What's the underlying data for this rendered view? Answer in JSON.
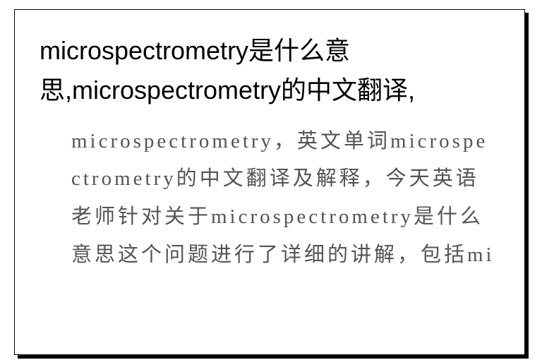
{
  "card": {
    "title": "microspectrometry是什么意思,microspectrometry的中文翻译,",
    "body": "microspectrometry，英文单词microspectrometry的中文翻译及解释，今天英语老师针对关于microspectrometry是什么意思这个问题进行了详细的讲解，包括mi",
    "background_color": "#ffffff",
    "border_color": "#000000",
    "shadow_color": "#000000",
    "title_color": "#000000",
    "body_color": "#545454",
    "title_fontsize": 36,
    "body_fontsize": 29
  }
}
